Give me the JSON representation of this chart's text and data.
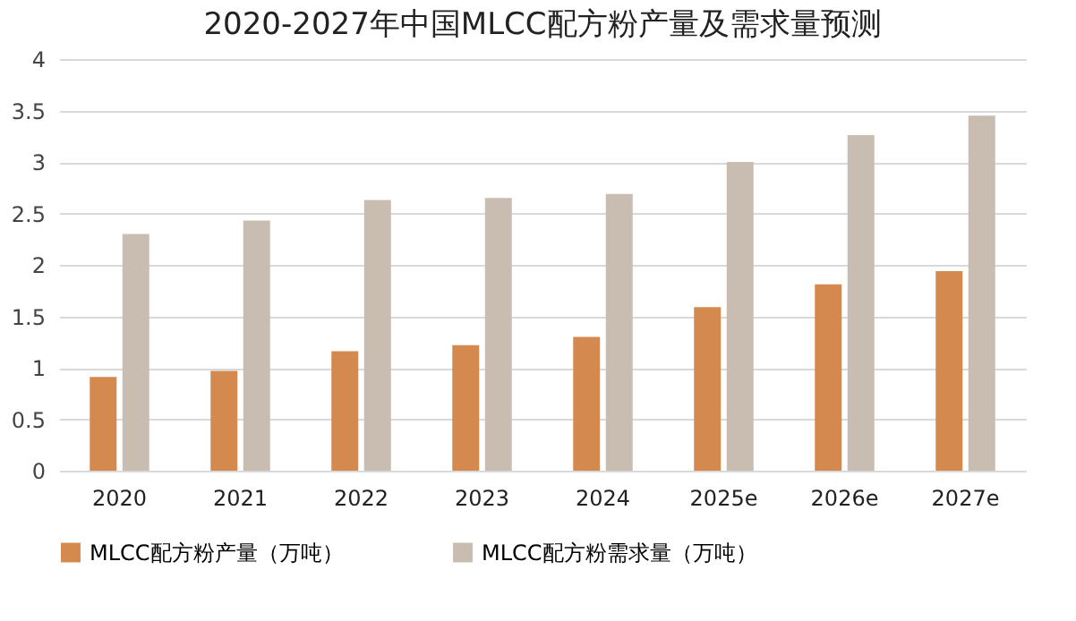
{
  "chart_data": {
    "type": "bar",
    "title": "2020-2027年中国MLCC配方粉产量及需求量预测",
    "categories": [
      "2020",
      "2021",
      "2022",
      "2023",
      "2024",
      "2025e",
      "2026e",
      "2027e"
    ],
    "series": [
      {
        "name": "MLCC配方粉产量（万吨）",
        "color": "#d4894f",
        "values": [
          0.91,
          0.97,
          1.16,
          1.22,
          1.3,
          1.59,
          1.81,
          1.94
        ]
      },
      {
        "name": "MLCC配方粉需求量（万吨）",
        "color": "#c8bdb0",
        "values": [
          2.3,
          2.43,
          2.63,
          2.65,
          2.69,
          3.0,
          3.26,
          3.45
        ]
      }
    ],
    "ylim": [
      0,
      4
    ],
    "yticks": [
      0,
      0.5,
      1,
      1.5,
      2,
      2.5,
      3,
      3.5,
      4
    ],
    "grid": "y",
    "legend": "bottom"
  }
}
